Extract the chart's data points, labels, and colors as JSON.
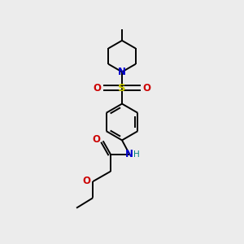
{
  "bg_color": "#ececec",
  "bond_color": "#000000",
  "N_color": "#0000cc",
  "O_color": "#cc0000",
  "S_color": "#cccc00",
  "H_color": "#008080",
  "line_width": 1.4,
  "font_size": 8.5,
  "fig_size": [
    3.0,
    3.0
  ],
  "dpi": 100,
  "xlim": [
    2.5,
    7.5
  ],
  "ylim": [
    0.2,
    9.8
  ]
}
